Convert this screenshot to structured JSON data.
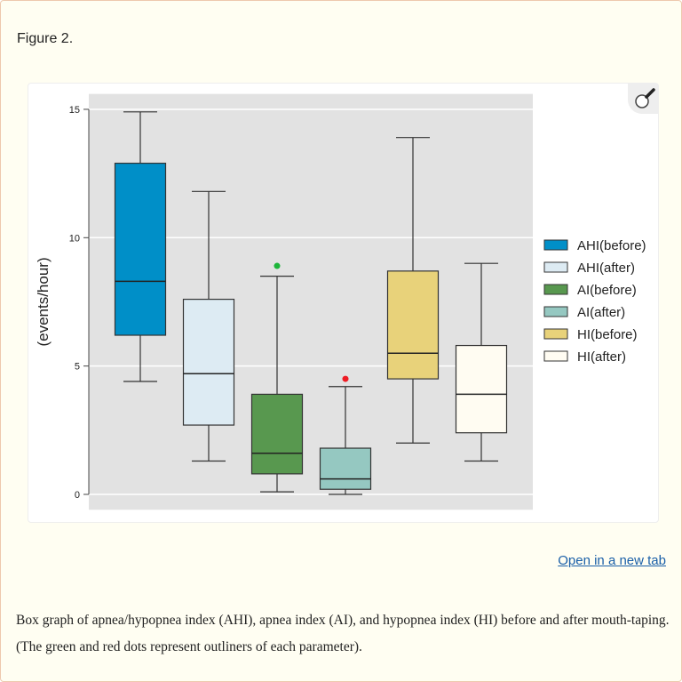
{
  "figure": {
    "label": "Figure 2.",
    "open_link": "Open in a new tab",
    "zoom_icon": "magnifier-icon",
    "caption": "Box graph of apnea/hypopnea index (AHI), apnea index (AI), and hypopnea index (HI) before and after mouth-taping. (The green and red dots represent outliners of each parameter)."
  },
  "chart_data": {
    "type": "box",
    "ylabel": "(events/hour)",
    "ylim": [
      -0.6,
      15.6
    ],
    "yticks": [
      0,
      5,
      10,
      15
    ],
    "grid": true,
    "legend_position": "right",
    "series": [
      {
        "name": "AHI(before)",
        "color": "#008fc8",
        "min": 4.4,
        "q1": 6.2,
        "median": 8.3,
        "q3": 12.9,
        "max": 14.9,
        "outliers": []
      },
      {
        "name": "AHI(after)",
        "color": "#ddebf3",
        "min": 1.3,
        "q1": 2.7,
        "median": 4.7,
        "q3": 7.6,
        "max": 11.8,
        "outliers": []
      },
      {
        "name": "AI(before)",
        "color": "#58984f",
        "min": 0.1,
        "q1": 0.8,
        "median": 1.6,
        "q3": 3.9,
        "max": 8.5,
        "outliers": [
          8.9
        ],
        "outlier_color": "#1db53a"
      },
      {
        "name": "AI(after)",
        "color": "#95c8c1",
        "min": 0.0,
        "q1": 0.2,
        "median": 0.6,
        "q3": 1.8,
        "max": 4.2,
        "outliers": [
          4.5
        ],
        "outlier_color": "#ee1c24"
      },
      {
        "name": "HI(before)",
        "color": "#e8d27a",
        "min": 2.0,
        "q1": 4.5,
        "median": 5.5,
        "q3": 8.7,
        "max": 13.9,
        "outliers": []
      },
      {
        "name": "HI(after)",
        "color": "#fffcf2",
        "min": 1.3,
        "q1": 2.4,
        "median": 3.9,
        "q3": 5.8,
        "max": 9.0,
        "outliers": []
      }
    ]
  }
}
